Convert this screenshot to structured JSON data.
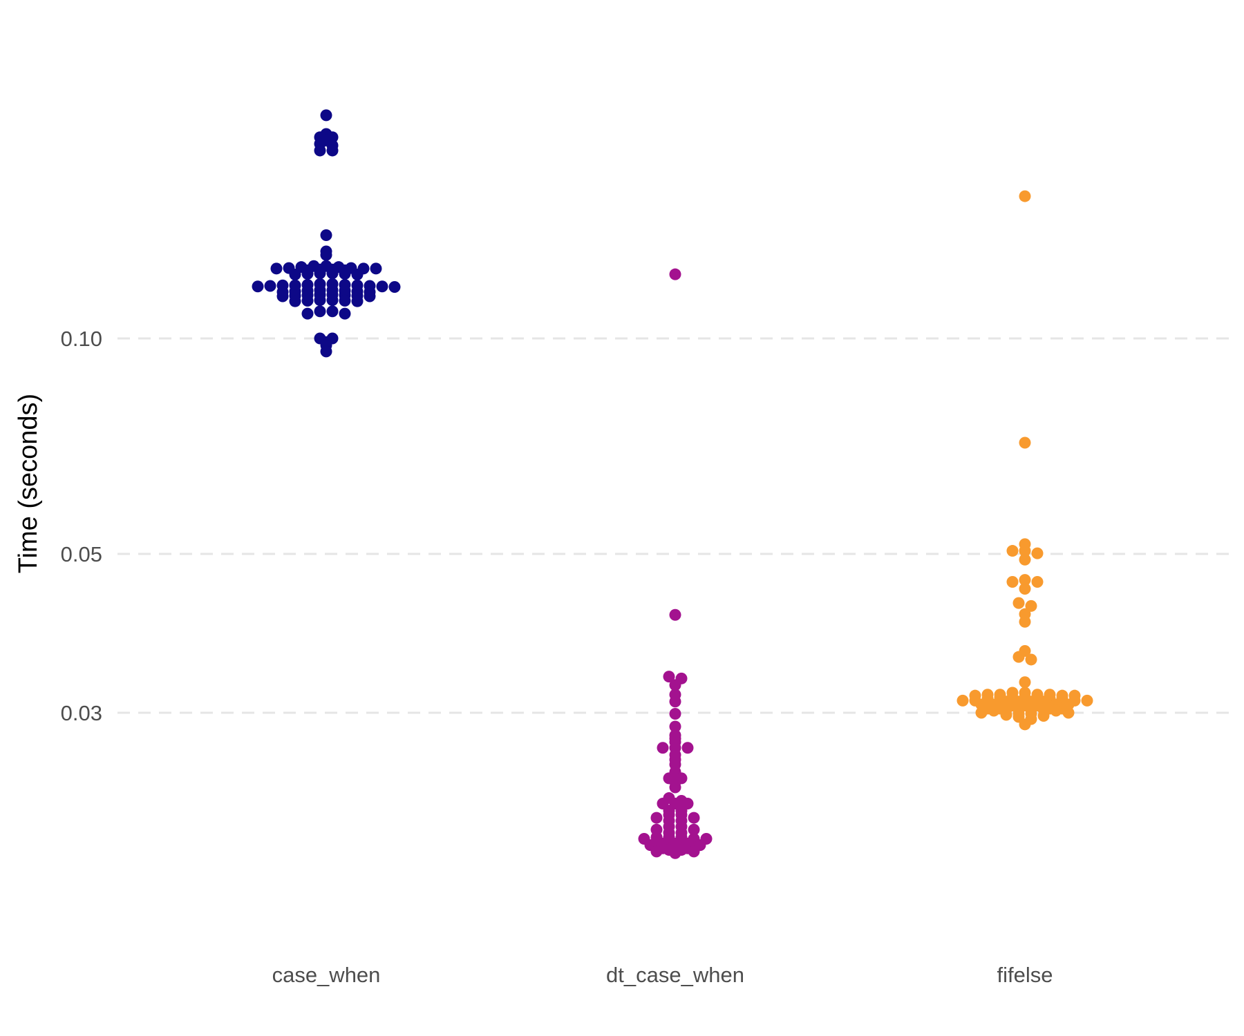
{
  "chart_data": {
    "type": "scatter",
    "subtype": "beeswarm",
    "title": "",
    "xlabel": "",
    "ylabel": "Time (seconds)",
    "y_scale": "log10",
    "ylim": [
      0.0175,
      0.215
    ],
    "y_ticks": [
      0.03,
      0.05,
      0.1
    ],
    "y_tick_labels": [
      "0.03",
      "0.05",
      "0.10"
    ],
    "grid": {
      "horizontal_major": true,
      "style": "dashed",
      "color": "#e5e5e5"
    },
    "categories": [
      "case_when",
      "dt_case_when",
      "fifelse"
    ],
    "legend": "none",
    "series": [
      {
        "category": "case_when",
        "color": "#0d0887",
        "values": [
          0.205,
          0.193,
          0.191,
          0.191,
          0.189,
          0.187,
          0.186,
          0.183,
          0.183,
          0.1394,
          0.1323,
          0.1308,
          0.1262,
          0.1262,
          0.1258,
          0.1258,
          0.1254,
          0.1254,
          0.1252,
          0.1252,
          0.1252,
          0.1248,
          0.1248,
          0.1245,
          0.1245,
          0.1233,
          0.1233,
          0.1231,
          0.1231,
          0.1228,
          0.1228,
          0.1191,
          0.1191,
          0.1188,
          0.1188,
          0.1186,
          0.1186,
          0.1186,
          0.1184,
          0.1184,
          0.1182,
          0.1182,
          0.118,
          0.1168,
          0.1168,
          0.1166,
          0.1166,
          0.1163,
          0.1163,
          0.1161,
          0.1161,
          0.1151,
          0.1151,
          0.1149,
          0.1149,
          0.1147,
          0.1147,
          0.1145,
          0.1145,
          0.1131,
          0.1131,
          0.1129,
          0.1129,
          0.1127,
          0.1127,
          0.1091,
          0.1091,
          0.1083,
          0.1083,
          0.1,
          0.1,
          0.0988,
          0.0978,
          0.0959
        ]
      },
      {
        "category": "dt_case_when",
        "color": "#a3128f",
        "values": [
          0.1229,
          0.0411,
          0.0337,
          0.0335,
          0.0328,
          0.0318,
          0.0311,
          0.0299,
          0.0287,
          0.0279,
          0.0276,
          0.0273,
          0.0268,
          0.0268,
          0.0268,
          0.0262,
          0.0258,
          0.0254,
          0.0248,
          0.0243,
          0.0243,
          0.024,
          0.0236,
          0.0228,
          0.0226,
          0.0224,
          0.0224,
          0.0224,
          0.0219,
          0.0219,
          0.0216,
          0.0216,
          0.0214,
          0.0214,
          0.0212,
          0.0212,
          0.0208,
          0.0208,
          0.0206,
          0.0206,
          0.0204,
          0.0204,
          0.0201,
          0.0201,
          0.0201,
          0.02,
          0.02,
          0.02,
          0.0199,
          0.0199,
          0.0198,
          0.0198,
          0.0197,
          0.0197,
          0.0197,
          0.0196,
          0.0196,
          0.0195,
          0.0194,
          0.0194,
          0.0193,
          0.0193,
          0.0192,
          0.0192,
          0.0191
        ]
      },
      {
        "category": "fifelse",
        "color": "#f89a2e",
        "values": [
          0.158,
          0.0715,
          0.0516,
          0.0505,
          0.0505,
          0.0501,
          0.0491,
          0.046,
          0.0457,
          0.0457,
          0.0447,
          0.0427,
          0.0423,
          0.0412,
          0.0402,
          0.0366,
          0.0359,
          0.0356,
          0.0331,
          0.032,
          0.032,
          0.0318,
          0.0318,
          0.0318,
          0.0318,
          0.0317,
          0.0317,
          0.0317,
          0.0315,
          0.0315,
          0.0315,
          0.0315,
          0.0314,
          0.0314,
          0.0314,
          0.0312,
          0.0312,
          0.0312,
          0.0312,
          0.0311,
          0.0311,
          0.0311,
          0.0311,
          0.0308,
          0.0308,
          0.0308,
          0.0308,
          0.0307,
          0.0307,
          0.0307,
          0.0304,
          0.0304,
          0.0304,
          0.0304,
          0.0303,
          0.0303,
          0.0303,
          0.0303,
          0.0302,
          0.0302,
          0.03,
          0.03,
          0.0299,
          0.0299,
          0.0298,
          0.0297,
          0.0296,
          0.0294,
          0.0289
        ]
      }
    ]
  }
}
